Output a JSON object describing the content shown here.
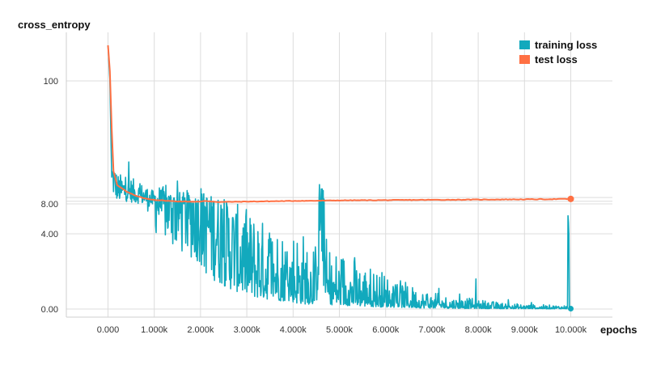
{
  "chart_data": {
    "type": "line",
    "title": "",
    "ylabel": "cross_entropy",
    "xlabel": "epochs",
    "x_ticks": [
      "0.000",
      "1.000k",
      "2.000k",
      "3.000k",
      "4.000k",
      "5.000k",
      "6.000k",
      "7.000k",
      "8.000k",
      "9.000k",
      "10.000k"
    ],
    "x_tick_values": [
      0,
      1000,
      2000,
      3000,
      4000,
      5000,
      6000,
      7000,
      8000,
      9000,
      10000
    ],
    "y_ticks": [
      "100",
      "8.00",
      "4.00",
      "0.00"
    ],
    "xlim": [
      -900,
      10900
    ],
    "scale": "nonlinear (symlog-like)",
    "grid": true,
    "legend": "top-right",
    "series": [
      {
        "name": "training loss",
        "color": "#12a9bd",
        "points": [
          [
            0,
            180
          ],
          [
            80,
            28
          ],
          [
            200,
            18
          ],
          [
            400,
            17
          ],
          [
            600,
            15
          ],
          [
            800,
            13
          ],
          [
            1000,
            10
          ],
          [
            1200,
            8.5
          ],
          [
            1500,
            7.2
          ],
          [
            1800,
            6.5
          ],
          [
            2000,
            6.0
          ],
          [
            2300,
            4.5
          ],
          [
            2600,
            3.2
          ],
          [
            3000,
            2.1
          ],
          [
            3500,
            1.6
          ],
          [
            4000,
            1.2
          ],
          [
            4500,
            0.9
          ],
          [
            4600,
            9.0
          ],
          [
            4700,
            1.0
          ],
          [
            5000,
            0.8
          ],
          [
            5500,
            0.6
          ],
          [
            6000,
            0.45
          ],
          [
            6500,
            0.3
          ],
          [
            7000,
            0.2
          ],
          [
            7500,
            0.15
          ],
          [
            8000,
            0.12
          ],
          [
            8500,
            0.08
          ],
          [
            9000,
            0.06
          ],
          [
            9500,
            0.05
          ],
          [
            9930,
            0.05
          ],
          [
            9950,
            5.5
          ],
          [
            9970,
            0.05
          ],
          [
            10000,
            0.02
          ]
        ],
        "noise": [
          {
            "x_range": [
              80,
              1000
            ],
            "amplitude": 0.55
          },
          {
            "x_range": [
              1000,
              2000
            ],
            "amplitude": 0.9
          },
          {
            "x_range": [
              2000,
              3000
            ],
            "amplitude": 1.1
          },
          {
            "x_range": [
              3000,
              4000
            ],
            "amplitude": 1.2
          },
          {
            "x_range": [
              4000,
              5000
            ],
            "amplitude": 1.4
          },
          {
            "x_range": [
              5000,
              10000
            ],
            "amplitude": 1.5
          }
        ],
        "spikes": [
          [
            4850,
            1.4
          ],
          [
            5200,
            1.0
          ],
          [
            5600,
            1.1
          ],
          [
            5900,
            0.7
          ],
          [
            6250,
            1.3
          ],
          [
            6600,
            0.9
          ],
          [
            6900,
            0.8
          ],
          [
            7150,
            1.1
          ],
          [
            7600,
            0.8
          ],
          [
            7950,
            1.6
          ],
          [
            8650,
            0.5
          ],
          [
            9150,
            0.35
          ]
        ]
      },
      {
        "name": "test loss",
        "color": "#ff7043",
        "points": [
          [
            0,
            180
          ],
          [
            100,
            35
          ],
          [
            200,
            22
          ],
          [
            300,
            20
          ],
          [
            400,
            17
          ],
          [
            600,
            14
          ],
          [
            800,
            12
          ],
          [
            1000,
            11
          ],
          [
            1200,
            10.5
          ],
          [
            1400,
            10
          ],
          [
            1600,
            9.8
          ],
          [
            1800,
            9.7
          ],
          [
            2000,
            9.6
          ],
          [
            2100,
            10.2
          ],
          [
            2200,
            9.9
          ],
          [
            2400,
            9.4
          ],
          [
            2600,
            9.5
          ],
          [
            2800,
            9.6
          ],
          [
            3000,
            9.7
          ],
          [
            3200,
            9.8
          ],
          [
            3400,
            9.9
          ],
          [
            3600,
            10
          ],
          [
            3800,
            10.1
          ],
          [
            4000,
            10.2
          ],
          [
            4200,
            10.3
          ],
          [
            4400,
            10.3
          ],
          [
            4600,
            10.4
          ],
          [
            4800,
            10.5
          ],
          [
            5000,
            10.6
          ],
          [
            5500,
            10.7
          ],
          [
            6000,
            10.8
          ],
          [
            6500,
            10.9
          ],
          [
            7000,
            11.0
          ],
          [
            7500,
            11.1
          ],
          [
            8000,
            11.2
          ],
          [
            8500,
            11.3
          ],
          [
            9000,
            11.4
          ],
          [
            9500,
            11.5
          ],
          [
            10000,
            11.7
          ]
        ]
      }
    ]
  }
}
